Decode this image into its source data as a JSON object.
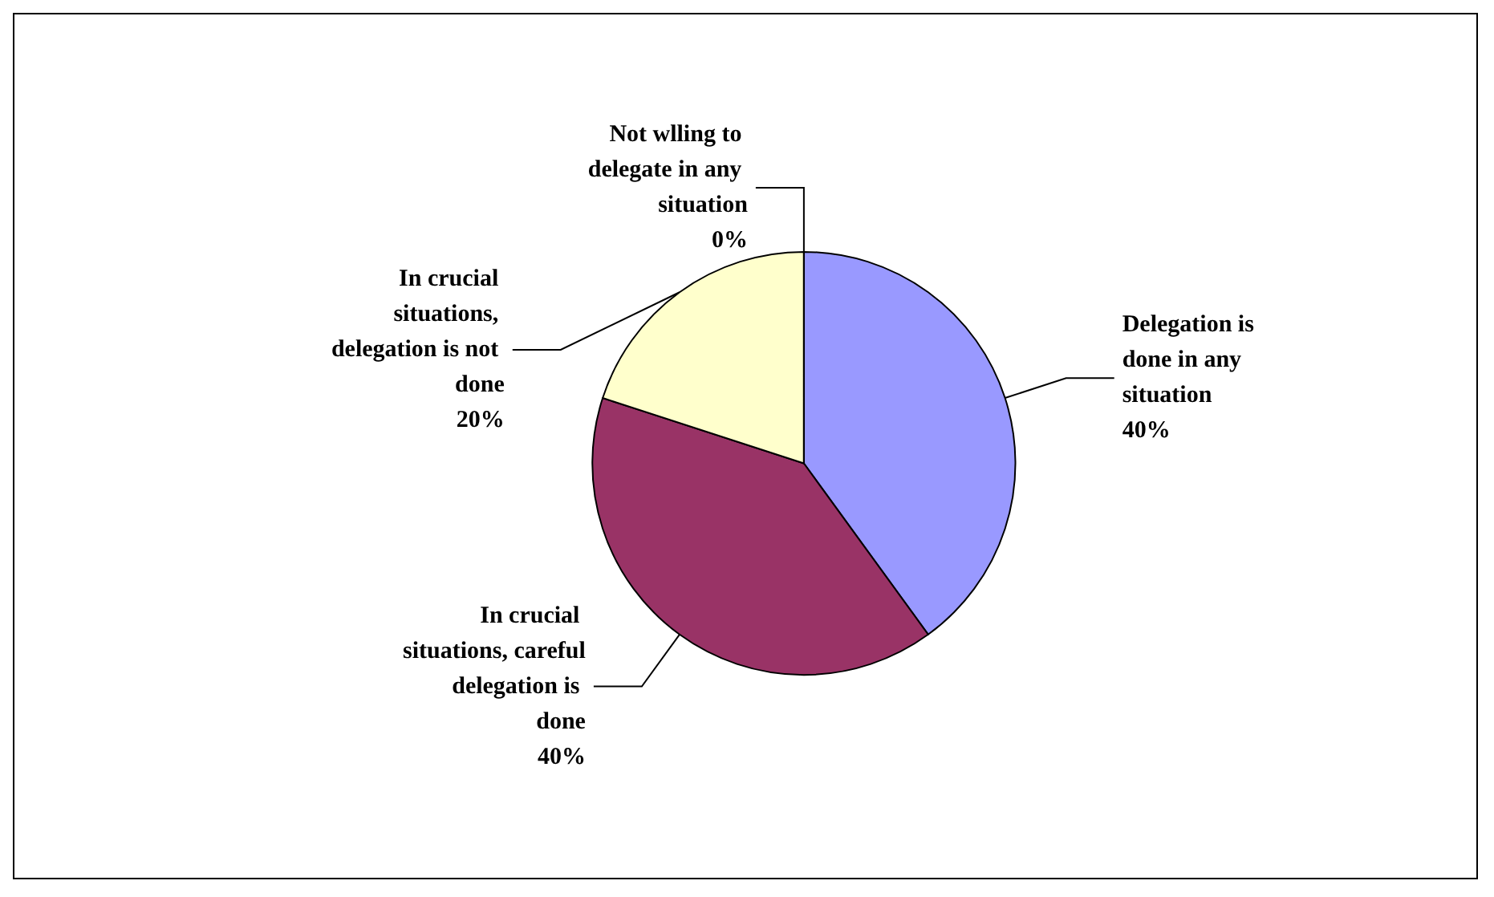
{
  "chart_data": {
    "type": "pie",
    "categories": [
      "Delegation is done in any situation",
      "In crucial situations, careful delegation is done",
      "In crucial situations, delegation is not done",
      "Not wlling to delegate in any situation"
    ],
    "values": [
      40,
      40,
      20,
      0
    ],
    "colors": [
      "#9999ff",
      "#993366",
      "#ffffcc",
      "#ccffff"
    ],
    "value_labels": [
      "40%",
      "40%",
      "20%",
      "0%"
    ],
    "legend": false
  }
}
